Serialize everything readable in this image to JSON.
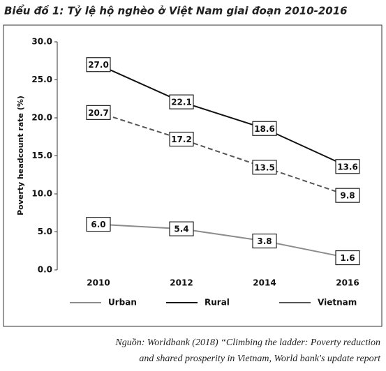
{
  "chart_data": {
    "type": "line",
    "title": "Biểu đồ 1: Tỷ lệ hộ nghèo ở Việt Nam giai đoạn 2010-2016",
    "y_label": "Poverty headcount rate (%)",
    "categories": [
      "2010",
      "2012",
      "2014",
      "2016"
    ],
    "series": [
      {
        "name": "Urban",
        "color": "#8c8c8c",
        "dash": false,
        "values": [
          6.0,
          5.4,
          3.8,
          1.6
        ],
        "value_labels": [
          "6.0",
          "5.4",
          "3.8",
          "1.6"
        ]
      },
      {
        "name": "Rural",
        "color": "#111111",
        "dash": false,
        "values": [
          27.0,
          22.1,
          18.6,
          13.6
        ],
        "value_labels": [
          "27.0",
          "22.1",
          "18.6",
          "13.6"
        ]
      },
      {
        "name": "Vietnam",
        "color": "#555555",
        "dash": true,
        "values": [
          20.7,
          17.2,
          13.5,
          9.8
        ],
        "value_labels": [
          "20.7",
          "17.2",
          "13.5",
          "9.8"
        ]
      }
    ],
    "ylim": [
      0,
      30
    ],
    "yticks": [
      {
        "value": 0,
        "label": "0.0"
      },
      {
        "value": 5,
        "label": "5.0"
      },
      {
        "value": 10,
        "label": "10.0"
      },
      {
        "value": 15,
        "label": "15.0"
      },
      {
        "value": 20,
        "label": "20.0"
      },
      {
        "value": 25,
        "label": "25.0"
      },
      {
        "value": 30,
        "label": "30.0"
      }
    ],
    "legend": "bottom",
    "source": [
      "Nguồn: Worldbank (2018) “Climbing the ladder: Poverty reduction",
      "and shared prosperity in Vietnam, World bank's update report"
    ]
  }
}
